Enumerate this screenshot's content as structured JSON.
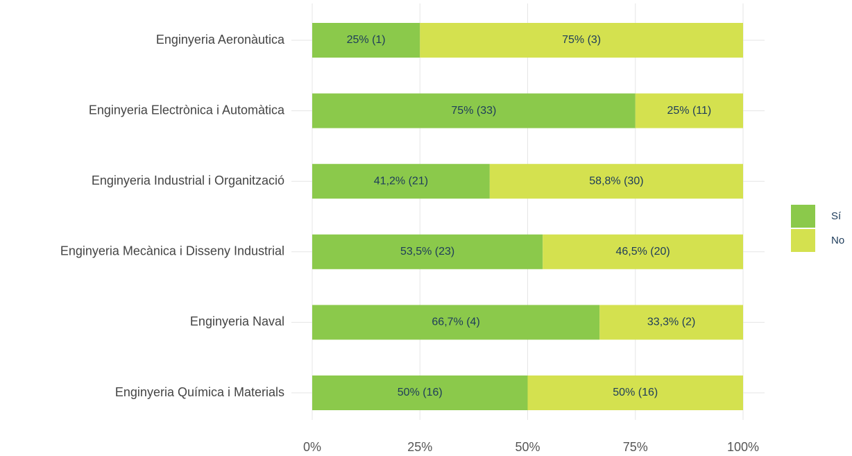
{
  "chart_data": {
    "type": "stacked_barh",
    "categories": [
      "Enginyeria Aeronàutica",
      "Enginyeria Electrònica i Automàtica",
      "Enginyeria Industrial i Organització",
      "Enginyeria Mecànica i Disseny Industrial",
      "Enginyeria Naval",
      "Enginyeria Química i Materials"
    ],
    "series": [
      {
        "name": "Sí",
        "color": "#8bc94b",
        "values": [
          25,
          75,
          41.2,
          53.5,
          66.7,
          50
        ],
        "value_labels": [
          "25% (1)",
          "75% (33)",
          "41,2% (21)",
          "53,5% (23)",
          "66,7% (4)",
          "50% (16)"
        ]
      },
      {
        "name": "No",
        "color": "#d4e14f",
        "values": [
          75,
          25,
          58.8,
          46.5,
          33.3,
          50
        ],
        "value_labels": [
          "75% (3)",
          "25% (11)",
          "58,8% (30)",
          "46,5% (20)",
          "33,3% (2)",
          "50% (16)"
        ]
      }
    ],
    "xlim": [
      0,
      100
    ],
    "xticks": [
      {
        "value": 0,
        "label": "0%"
      },
      {
        "value": 25,
        "label": "25%"
      },
      {
        "value": 50,
        "label": "50%"
      },
      {
        "value": 75,
        "label": "75%"
      },
      {
        "value": 100,
        "label": "100%"
      }
    ],
    "grid": true,
    "legend": "right"
  }
}
